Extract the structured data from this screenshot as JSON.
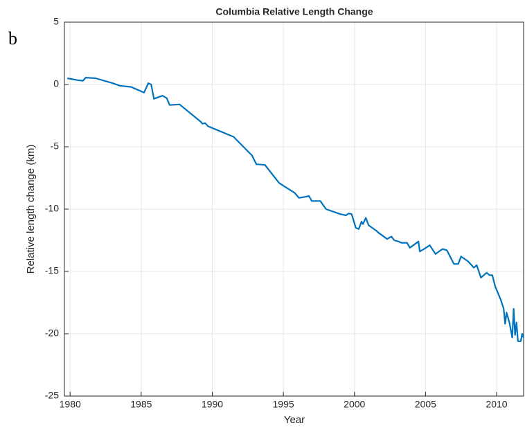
{
  "chart_data": {
    "type": "line",
    "title": "Columbia Relative Length Change",
    "panel_label": "b",
    "x_label": "Year",
    "y_label": "Relative length change (km)",
    "xlim": [
      1979.6,
      2011.9
    ],
    "ylim": [
      -25,
      5
    ],
    "xticks": [
      1980,
      1985,
      1990,
      1995,
      2000,
      2005,
      2010
    ],
    "yticks": [
      -25,
      -20,
      -15,
      -10,
      -5,
      0,
      5
    ],
    "grid": true,
    "x": [
      1979.8,
      1980.5,
      1980.9,
      1981.1,
      1981.8,
      1983,
      1983.5,
      1984.3,
      1985.2,
      1985.5,
      1985.7,
      1985.9,
      1986.5,
      1986.8,
      1987.0,
      1987.7,
      1989.2,
      1989.3,
      1989.5,
      1989.7,
      1991.5,
      1992.8,
      1993.1,
      1993.7,
      1994.7,
      1995.1,
      1995.8,
      1996.1,
      1996.6,
      1996.8,
      1997.0,
      1997.6,
      1998.0,
      1999.0,
      1999.4,
      1999.6,
      1999.8,
      2000.1,
      2000.3,
      2000.5,
      2000.6,
      2000.8,
      2001.0,
      2001.5,
      2001.7,
      2002.3,
      2002.6,
      2002.8,
      2003.1,
      2003.3,
      2003.7,
      2003.9,
      2004.5,
      2004.6,
      2004.9,
      2005.3,
      2005.7,
      2006.2,
      2006.5,
      2007.0,
      2007.3,
      2007.5,
      2008.0,
      2008.4,
      2008.6,
      2008.9,
      2009.3,
      2009.5,
      2009.7,
      2009.9,
      2010.3,
      2010.5,
      2010.6,
      2010.7,
      2010.9,
      2011.1,
      2011.2,
      2011.3,
      2011.4,
      2011.5,
      2011.7,
      2011.8,
      2011.9
    ],
    "series": [
      {
        "name": "Columbia",
        "color": "#0072bd",
        "values": [
          0.5,
          0.35,
          0.3,
          0.55,
          0.5,
          0.1,
          -0.1,
          -0.2,
          -0.65,
          0.1,
          0,
          -1.15,
          -0.9,
          -1.1,
          -1.65,
          -1.6,
          -3.0,
          -3.15,
          -3.1,
          -3.35,
          -4.2,
          -5.7,
          -6.4,
          -6.45,
          -7.9,
          -8.2,
          -8.7,
          -9.1,
          -9.0,
          -8.95,
          -9.35,
          -9.35,
          -10.0,
          -10.4,
          -10.5,
          -10.35,
          -10.4,
          -11.5,
          -11.6,
          -11.0,
          -11.2,
          -10.7,
          -11.3,
          -11.7,
          -11.9,
          -12.4,
          -12.2,
          -12.5,
          -12.6,
          -12.7,
          -12.7,
          -13.1,
          -12.6,
          -13.4,
          -13.2,
          -12.9,
          -13.6,
          -13.2,
          -13.3,
          -14.4,
          -14.4,
          -13.8,
          -14.2,
          -14.7,
          -14.5,
          -15.5,
          -15.1,
          -15.3,
          -15.3,
          -16.2,
          -17.3,
          -18.0,
          -19.2,
          -18.3,
          -19.1,
          -20.3,
          -18.0,
          -20.1,
          -19.1,
          -20.6,
          -20.6,
          -20.0,
          -20.3
        ]
      }
    ]
  }
}
